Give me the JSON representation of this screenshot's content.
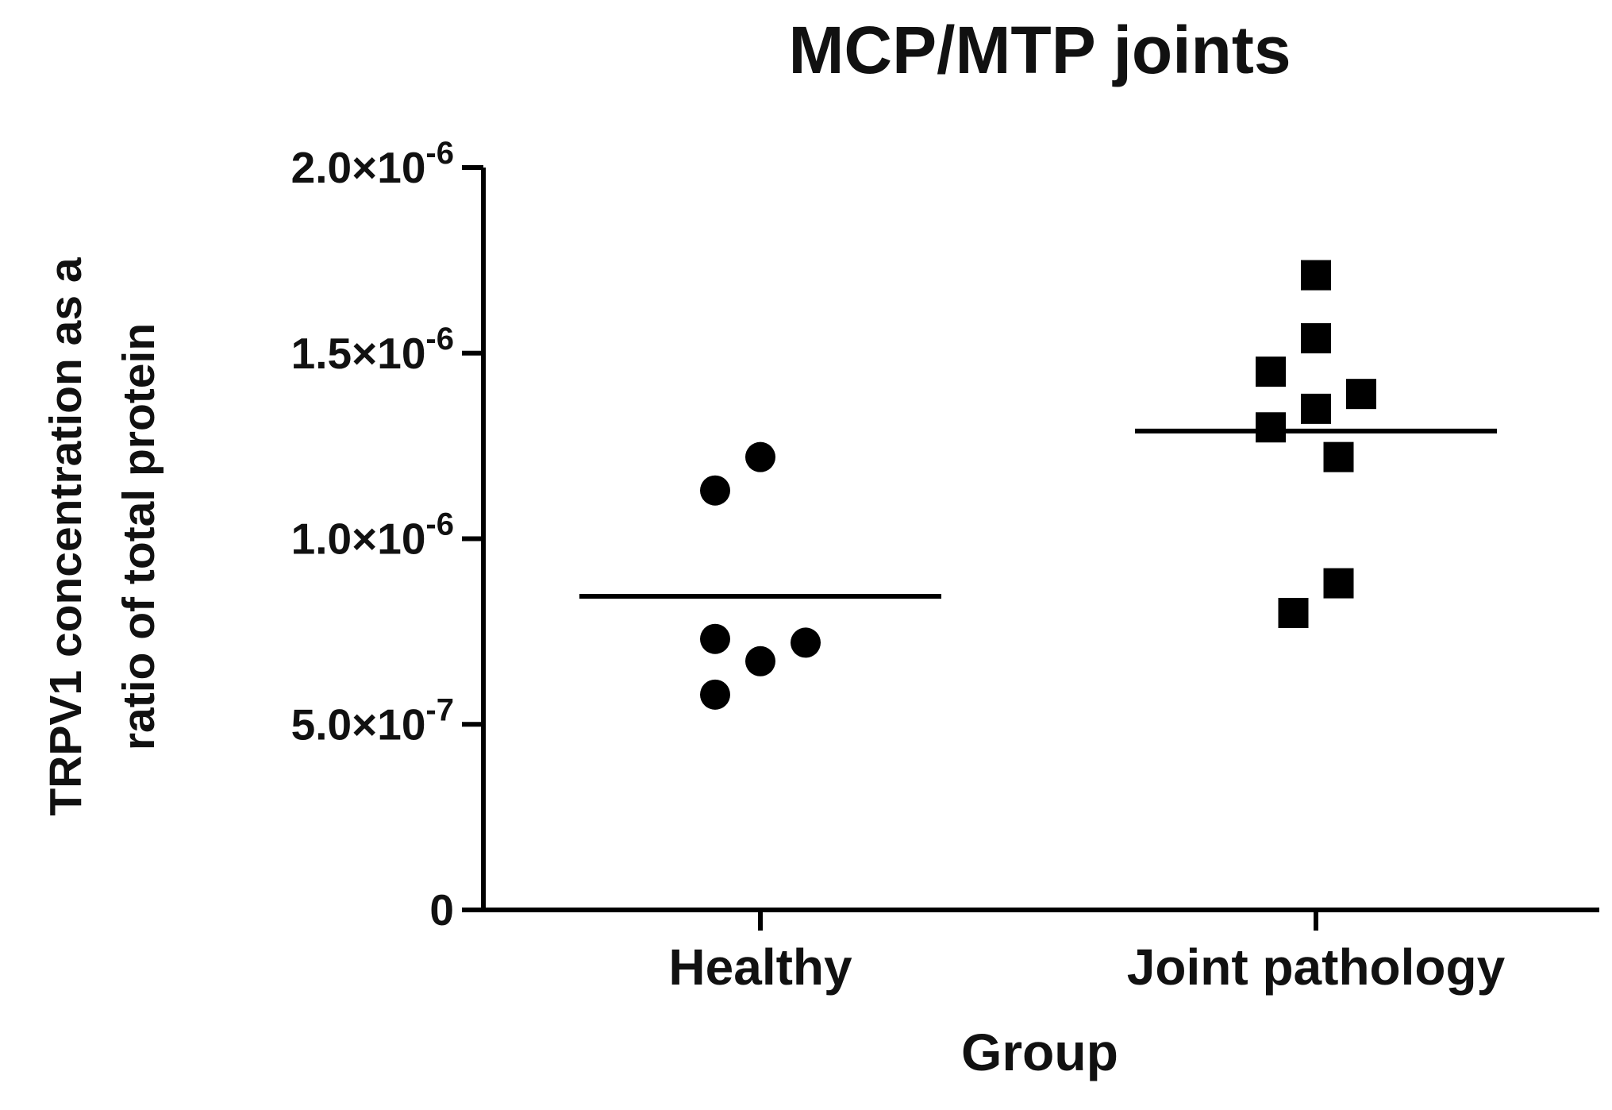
{
  "chart_data": {
    "type": "scatter",
    "title": "MCP/MTP joints",
    "xlabel": "Group",
    "ylabel_line1": "TRPV1 concentration as a",
    "ylabel_line2": "ratio of total protein",
    "categories": [
      "Healthy",
      "Joint pathology"
    ],
    "ylim": [
      0,
      2e-06
    ],
    "yticks": [
      {
        "value": 0,
        "mantissa": "0",
        "exponent": ""
      },
      {
        "value": 5e-07,
        "mantissa": "5.0×10",
        "exponent": "-7"
      },
      {
        "value": 1e-06,
        "mantissa": "1.0×10",
        "exponent": "-6"
      },
      {
        "value": 1.5e-06,
        "mantissa": "1.5×10",
        "exponent": "-6"
      },
      {
        "value": 2e-06,
        "mantissa": "2.0×10",
        "exponent": "-6"
      }
    ],
    "series": [
      {
        "category": "Healthy",
        "marker": "circle",
        "mean": 8.45e-07,
        "points": [
          {
            "offset": 0.0,
            "y": 1.22e-06
          },
          {
            "offset": -0.5,
            "y": 1.13e-06
          },
          {
            "offset": -0.5,
            "y": 7.3e-07
          },
          {
            "offset": 0.5,
            "y": 7.2e-07
          },
          {
            "offset": 0.0,
            "y": 6.7e-07
          },
          {
            "offset": -0.5,
            "y": 5.8e-07
          }
        ]
      },
      {
        "category": "Joint pathology",
        "marker": "square",
        "mean": 1.29e-06,
        "points": [
          {
            "offset": 0.0,
            "y": 1.71e-06
          },
          {
            "offset": 0.0,
            "y": 1.54e-06
          },
          {
            "offset": -0.5,
            "y": 1.45e-06
          },
          {
            "offset": 0.5,
            "y": 1.39e-06
          },
          {
            "offset": 0.0,
            "y": 1.35e-06
          },
          {
            "offset": -0.5,
            "y": 1.3e-06
          },
          {
            "offset": 0.25,
            "y": 1.22e-06
          },
          {
            "offset": 0.25,
            "y": 8.8e-07
          },
          {
            "offset": -0.25,
            "y": 8e-07
          }
        ]
      }
    ],
    "grid": false,
    "legend": "none",
    "colors": {
      "marks": "#000000",
      "text": "#111111"
    }
  }
}
